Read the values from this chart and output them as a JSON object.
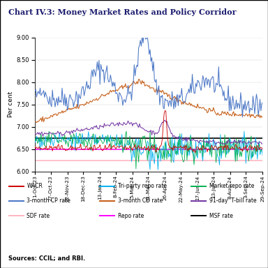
{
  "title": "Chart IV.3: Money Market Rates and Policy Corridor",
  "ylabel": "Per cent",
  "ylim": [
    6.0,
    9.0
  ],
  "yticks": [
    6.0,
    6.5,
    7.0,
    7.5,
    8.0,
    8.5,
    9.0
  ],
  "x_labels": [
    "1-Oct-23",
    "27-Oct-23",
    "22-Nov-23",
    "18-Dec-23",
    "13-Jan-24",
    "8-Feb-24",
    "5-Mar-24",
    "31-Mar-24",
    "26-Apr-24",
    "22-May-24",
    "17-Jun-24",
    "13-Jul-24",
    "8-Aug-24",
    "3-Sep-24",
    "29-Sep-24"
  ],
  "sdf_rate": 6.25,
  "repo_rate": 6.5,
  "msf_rate": 6.75,
  "sources": "Sources: CCIL; and RBI.",
  "legend_row1": [
    {
      "label": "WACR",
      "color": "#cc0000"
    },
    {
      "label": "Tri-party repo rate",
      "color": "#00b0f0"
    },
    {
      "label": "Market repo rate",
      "color": "#00b050"
    }
  ],
  "legend_row2": [
    {
      "label": "3-month CP rate",
      "color": "#4472c4"
    },
    {
      "label": "3-month CD rate",
      "color": "#c55a11"
    },
    {
      "label": "91-day  T-bill rate",
      "color": "#7030a0"
    }
  ],
  "legend_row3": [
    {
      "label": "SDF rate",
      "color": "#ffb6c1"
    },
    {
      "label": "Repo rate",
      "color": "#ff00ff"
    },
    {
      "label": "MSF rate",
      "color": "#000000"
    }
  ],
  "background_color": "#ffffff",
  "figsize": [
    3.84,
    3.84
  ],
  "dpi": 100
}
